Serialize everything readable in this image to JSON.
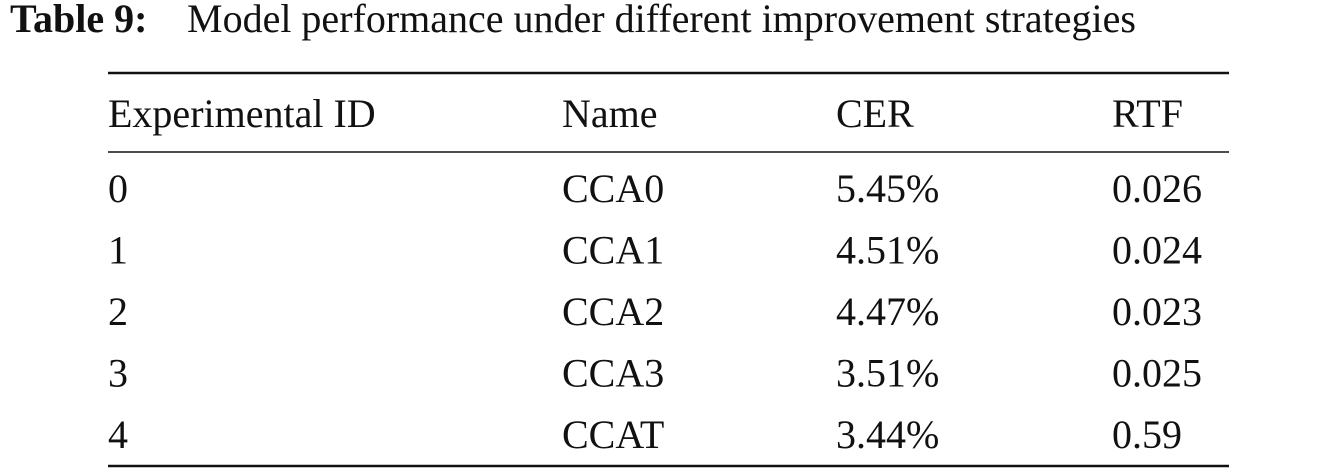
{
  "caption": {
    "label": "Table 9:",
    "text": "Model performance under different improvement strategies"
  },
  "table": {
    "header": [
      "Experimental ID",
      "Name",
      "CER",
      "RTF"
    ],
    "rows": [
      [
        "0",
        "CCA0",
        "5.45%",
        "0.026"
      ],
      [
        "1",
        "CCA1",
        "4.51%",
        "0.024"
      ],
      [
        "2",
        "CCA2",
        "4.47%",
        "0.023"
      ],
      [
        "3",
        "CCA3",
        "3.51%",
        "0.025"
      ],
      [
        "4",
        "CCAT",
        "3.44%",
        "0.59"
      ]
    ]
  }
}
